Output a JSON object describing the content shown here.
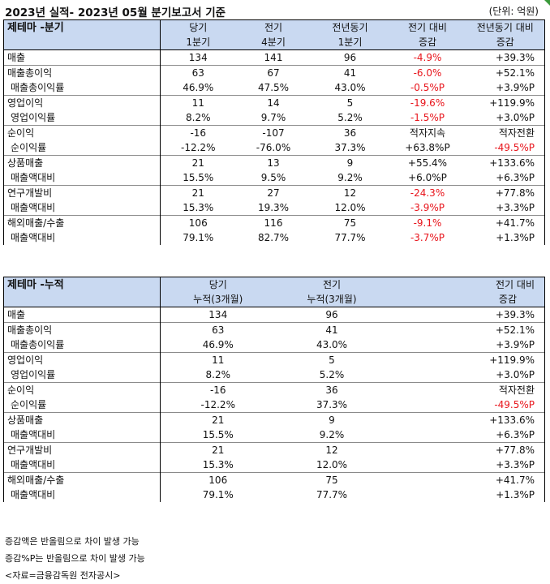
{
  "title": "2023년 실적- 2023년 05월 분기보고서 기준",
  "unit": "(단위: 억원)",
  "quarterly": {
    "header": {
      "label": "제테마 -분기",
      "cols": [
        {
          "line1": "당기",
          "line2": "1분기"
        },
        {
          "line1": "전기",
          "line2": "4분기"
        },
        {
          "line1": "전년동기",
          "line2": "1분기"
        },
        {
          "line1": "전기 대비",
          "line2": "증감"
        },
        {
          "line1": "전년동기 대비",
          "line2": "증감"
        }
      ]
    },
    "rows": [
      {
        "label": "매출",
        "sub": false,
        "values": [
          "134",
          "141",
          "96",
          "-4.9%",
          "+39.3%"
        ]
      },
      {
        "label": "매출총이익",
        "sub": false,
        "values": [
          "63",
          "67",
          "41",
          "-6.0%",
          "+52.1%"
        ]
      },
      {
        "label": "매출총이익률",
        "sub": true,
        "values": [
          "46.9%",
          "47.5%",
          "43.0%",
          "-0.5%P",
          "+3.9%P"
        ]
      },
      {
        "label": "영업이익",
        "sub": false,
        "values": [
          "11",
          "14",
          "5",
          "-19.6%",
          "+119.9%"
        ]
      },
      {
        "label": "영업이익률",
        "sub": true,
        "values": [
          "8.2%",
          "9.7%",
          "5.2%",
          "-1.5%P",
          "+3.0%P"
        ]
      },
      {
        "label": "순이익",
        "sub": false,
        "values": [
          "-16",
          "-107",
          "36",
          "적자지속",
          "적자전환"
        ]
      },
      {
        "label": "순이익률",
        "sub": true,
        "values": [
          "-12.2%",
          "-76.0%",
          "37.3%",
          "+63.8%P",
          "-49.5%P"
        ]
      },
      {
        "label": "상품매출",
        "sub": false,
        "values": [
          "21",
          "13",
          "9",
          "+55.4%",
          "+133.6%"
        ]
      },
      {
        "label": "매출액대비",
        "sub": true,
        "values": [
          "15.5%",
          "9.5%",
          "9.2%",
          "+6.0%P",
          "+6.3%P"
        ]
      },
      {
        "label": "연구개발비",
        "sub": false,
        "values": [
          "21",
          "27",
          "12",
          "-24.3%",
          "+77.8%"
        ]
      },
      {
        "label": "매출액대비",
        "sub": true,
        "values": [
          "15.3%",
          "19.3%",
          "12.0%",
          "-3.9%P",
          "+3.3%P"
        ]
      },
      {
        "label": "해외매출/수출",
        "sub": false,
        "values": [
          "106",
          "116",
          "75",
          "-9.1%",
          "+41.7%"
        ]
      },
      {
        "label": "매출액대비",
        "sub": true,
        "values": [
          "79.1%",
          "82.7%",
          "77.7%",
          "-3.7%P",
          "+1.3%P"
        ]
      }
    ]
  },
  "cumulative": {
    "header": {
      "label": "제테마 -누적",
      "cols": [
        {
          "line1": "당기",
          "line2": "누적(3개월)"
        },
        {
          "line1": "전기",
          "line2": "누적(3개월)"
        },
        {
          "line1": "전기 대비",
          "line2": "증감"
        }
      ]
    },
    "rows": [
      {
        "label": "매출",
        "sub": false,
        "values": [
          "134",
          "96",
          "+39.3%"
        ]
      },
      {
        "label": "매출총이익",
        "sub": false,
        "values": [
          "63",
          "41",
          "+52.1%"
        ]
      },
      {
        "label": "매출총이익률",
        "sub": true,
        "values": [
          "46.9%",
          "43.0%",
          "+3.9%P"
        ]
      },
      {
        "label": "영업이익",
        "sub": false,
        "values": [
          "11",
          "5",
          "+119.9%"
        ]
      },
      {
        "label": "영업이익률",
        "sub": true,
        "values": [
          "8.2%",
          "5.2%",
          "+3.0%P"
        ]
      },
      {
        "label": "순이익",
        "sub": false,
        "values": [
          "-16",
          "36",
          "적자전환"
        ]
      },
      {
        "label": "순이익률",
        "sub": true,
        "values": [
          "-12.2%",
          "37.3%",
          "-49.5%P"
        ]
      },
      {
        "label": "상품매출",
        "sub": false,
        "values": [
          "21",
          "9",
          "+133.6%"
        ]
      },
      {
        "label": "매출액대비",
        "sub": true,
        "values": [
          "15.5%",
          "9.2%",
          "+6.3%P"
        ]
      },
      {
        "label": "연구개발비",
        "sub": false,
        "values": [
          "21",
          "12",
          "+77.8%"
        ]
      },
      {
        "label": "매출액대비",
        "sub": true,
        "values": [
          "15.3%",
          "12.0%",
          "+3.3%P"
        ]
      },
      {
        "label": "해외매출/수출",
        "sub": false,
        "values": [
          "106",
          "75",
          "+41.7%"
        ]
      },
      {
        "label": "매출액대비",
        "sub": true,
        "values": [
          "79.1%",
          "77.7%",
          "+1.3%P"
        ]
      }
    ]
  },
  "notes": [
    "증감액은 반올림으로 차이 발생 가능",
    "증감%P는 반올림으로 차이 발생 가능",
    "<자료=금융감독원 전자공시>"
  ],
  "colors": {
    "header_bg": "#c9d9f1",
    "negative": "#e8141b",
    "accent_corner": "#3a9a3a"
  }
}
